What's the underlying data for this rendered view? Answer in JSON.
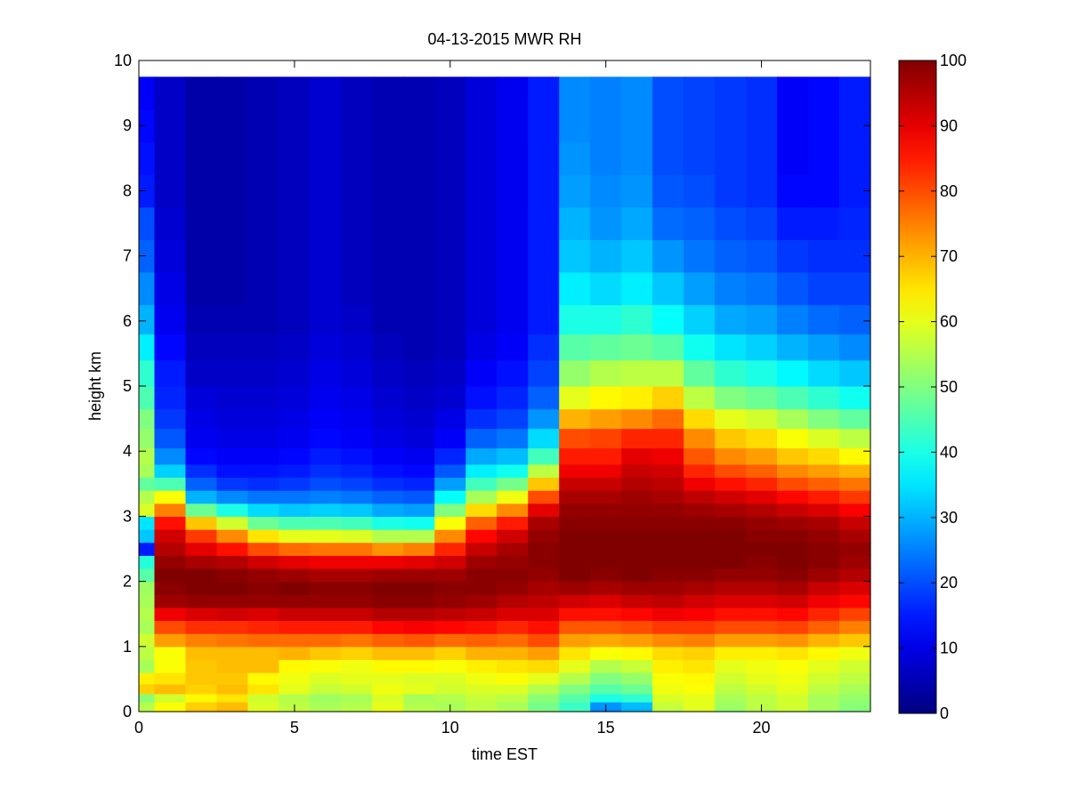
{
  "chart_data": {
    "type": "heatmap",
    "title": "04-13-2015 MWR RH",
    "xlabel": "time EST",
    "ylabel": "height km",
    "xlim": [
      0,
      23.5
    ],
    "ylim": [
      0,
      10
    ],
    "x_ticks": [
      0,
      5,
      10,
      15,
      20
    ],
    "x_tick_labels": [
      "0",
      "5",
      "10",
      "15",
      "20"
    ],
    "y_ticks": [
      0,
      1,
      2,
      3,
      4,
      5,
      6,
      7,
      8,
      9,
      10
    ],
    "y_tick_labels": [
      "0",
      "1",
      "2",
      "3",
      "4",
      "5",
      "6",
      "7",
      "8",
      "9",
      "10"
    ],
    "colorbar": {
      "colormap": "jet",
      "clim": [
        0,
        100
      ],
      "ticks": [
        0,
        10,
        20,
        30,
        40,
        50,
        60,
        70,
        80,
        90,
        100
      ],
      "tick_labels": [
        "0",
        "10",
        "20",
        "30",
        "40",
        "50",
        "60",
        "70",
        "80",
        "90",
        "100"
      ]
    },
    "time_hours": [
      0,
      1,
      2,
      3,
      4,
      5,
      6,
      7,
      8,
      9,
      10,
      11,
      12,
      13,
      14,
      15,
      16,
      17,
      18,
      19,
      20,
      21,
      22,
      23
    ],
    "heights_km": [
      0.0,
      0.1,
      0.2,
      0.35,
      0.5,
      0.7,
      0.9,
      1.1,
      1.3,
      1.5,
      1.7,
      1.9,
      2.1,
      2.3,
      2.5,
      2.7,
      2.9,
      3.1,
      3.3,
      3.5,
      3.7,
      3.9,
      4.2,
      4.5,
      4.8,
      5.2,
      5.6,
      6.0,
      6.5,
      7.0,
      7.5,
      8.0,
      8.5,
      9.0,
      9.5,
      9.75
    ],
    "rh_percent": [
      [
        56,
        55,
        51,
        67,
        64,
        54,
        56,
        58,
        54,
        55,
        54,
        53,
        46,
        41,
        15,
        32,
        35,
        59,
        55,
        47,
        54,
        55,
        52,
        50,
        45,
        42,
        36,
        30,
        26,
        22,
        20,
        15,
        14,
        13,
        12,
        12
      ],
      [
        63,
        62,
        58,
        69,
        65,
        62,
        62,
        72,
        80,
        89,
        97,
        99,
        100,
        98,
        95,
        92,
        86,
        75,
        62,
        45,
        33,
        26,
        21,
        18,
        16,
        15,
        13,
        11,
        10,
        9,
        8,
        7,
        7,
        7,
        7,
        7
      ],
      [
        68,
        67,
        63,
        67,
        68,
        68,
        69,
        75,
        83,
        91,
        98,
        100,
        100,
        96,
        90,
        82,
        68,
        48,
        30,
        22,
        17,
        13,
        11,
        10,
        9,
        7,
        6,
        5,
        4,
        4,
        4,
        4,
        4,
        4,
        4,
        4
      ],
      [
        70,
        69,
        65,
        69,
        68,
        69,
        69,
        76,
        83,
        92,
        98,
        100,
        99,
        95,
        86,
        74,
        58,
        40,
        26,
        18,
        14,
        12,
        10,
        9,
        8,
        7,
        6,
        5,
        4,
        4,
        4,
        4,
        4,
        4,
        4,
        4
      ],
      [
        60,
        59,
        58,
        65,
        63,
        69,
        69,
        77,
        84,
        91,
        98,
        99,
        98,
        92,
        80,
        65,
        48,
        34,
        24,
        17,
        14,
        12,
        10,
        9,
        8,
        7,
        6,
        5,
        5,
        5,
        5,
        5,
        5,
        5,
        5,
        5
      ],
      [
        57,
        56,
        55,
        60,
        61,
        63,
        70,
        77,
        85,
        93,
        98,
        100,
        97,
        90,
        77,
        60,
        45,
        32,
        24,
        18,
        15,
        13,
        11,
        10,
        9,
        8,
        7,
        6,
        6,
        6,
        6,
        6,
        6,
        6,
        6,
        6
      ],
      [
        55,
        54,
        53,
        57,
        59,
        62,
        68,
        77,
        85,
        93,
        98,
        99,
        96,
        89,
        76,
        60,
        45,
        33,
        25,
        20,
        17,
        15,
        13,
        12,
        11,
        10,
        9,
        8,
        8,
        8,
        8,
        8,
        8,
        8,
        8,
        8
      ],
      [
        56,
        55,
        54,
        58,
        60,
        61,
        67,
        76,
        85,
        93,
        98,
        99,
        96,
        89,
        76,
        59,
        44,
        32,
        24,
        19,
        16,
        14,
        12,
        11,
        10,
        9,
        8,
        7,
        6,
        6,
        6,
        6,
        6,
        6,
        6,
        6
      ],
      [
        61,
        60,
        59,
        61,
        60,
        63,
        69,
        78,
        87,
        95,
        99,
        100,
        97,
        89,
        73,
        55,
        40,
        29,
        22,
        17,
        14,
        12,
        10,
        9,
        8,
        7,
        6,
        5,
        5,
        5,
        5,
        5,
        5,
        5,
        5,
        5
      ],
      [
        56,
        55,
        54,
        60,
        59,
        63,
        69,
        79,
        88,
        95,
        99,
        100,
        97,
        90,
        75,
        55,
        39,
        28,
        21,
        16,
        13,
        11,
        9,
        8,
        7,
        6,
        5,
        5,
        5,
        5,
        5,
        5,
        5,
        5,
        5,
        5
      ],
      [
        55,
        54,
        55,
        58,
        59,
        62,
        67,
        77,
        87,
        94,
        98,
        99,
        97,
        92,
        84,
        74,
        62,
        50,
        38,
        28,
        21,
        16,
        12,
        10,
        8,
        7,
        6,
        6,
        6,
        6,
        6,
        6,
        6,
        6,
        6,
        6
      ],
      [
        57,
        56,
        57,
        59,
        61,
        64,
        70,
        78,
        86,
        93,
        97,
        99,
        99,
        97,
        93,
        87,
        78,
        66,
        54,
        44,
        36,
        29,
        22,
        17,
        14,
        12,
        10,
        9,
        9,
        9,
        9,
        9,
        9,
        9,
        9,
        9
      ],
      [
        55,
        54,
        56,
        59,
        62,
        65,
        70,
        77,
        84,
        91,
        95,
        98,
        99,
        98,
        96,
        92,
        85,
        74,
        61,
        49,
        39,
        31,
        24,
        19,
        16,
        14,
        12,
        11,
        11,
        11,
        11,
        11,
        11,
        11,
        11,
        11
      ],
      [
        50,
        49,
        51,
        55,
        60,
        66,
        72,
        80,
        86,
        91,
        94,
        96,
        98,
        99,
        99,
        98,
        96,
        90,
        80,
        68,
        56,
        44,
        34,
        27,
        22,
        19,
        17,
        15,
        15,
        15,
        15,
        15,
        15,
        15,
        15,
        15
      ],
      [
        44,
        43,
        46,
        50,
        55,
        60,
        65,
        72,
        79,
        86,
        92,
        97,
        100,
        100,
        100,
        100,
        99,
        98,
        96,
        93,
        89,
        85,
        80,
        70,
        60,
        52,
        46,
        40,
        36,
        32,
        30,
        28,
        27,
        26,
        26,
        26
      ],
      [
        26,
        27,
        40,
        46,
        50,
        55,
        62,
        71,
        79,
        86,
        91,
        96,
        99,
        100,
        100,
        100,
        99,
        98,
        96,
        93,
        89,
        85,
        81,
        72,
        63,
        55,
        47,
        40,
        34,
        30,
        27,
        26,
        25,
        25,
        25,
        25
      ],
      [
        30,
        31,
        42,
        48,
        52,
        57,
        63,
        72,
        80,
        87,
        93,
        97,
        100,
        100,
        100,
        100,
        99,
        98,
        97,
        95,
        93,
        90,
        84,
        74,
        64,
        56,
        48,
        42,
        36,
        32,
        29,
        27,
        26,
        26,
        26,
        26
      ],
      [
        56,
        57,
        59,
        61,
        62,
        64,
        66,
        74,
        82,
        89,
        94,
        97,
        99,
        100,
        100,
        100,
        99,
        98,
        96,
        94,
        92,
        89,
        84,
        77,
        67,
        56,
        46,
        38,
        32,
        27,
        23,
        21,
        20,
        20,
        20,
        20
      ],
      [
        59,
        60,
        60,
        62,
        63,
        65,
        67,
        75,
        82,
        88,
        92,
        96,
        99,
        100,
        100,
        100,
        99,
        97,
        94,
        89,
        84,
        79,
        74,
        66,
        56,
        47,
        39,
        33,
        28,
        24,
        22,
        20,
        19,
        19,
        19,
        19
      ],
      [
        52,
        53,
        54,
        56,
        58,
        60,
        64,
        72,
        80,
        86,
        91,
        95,
        98,
        100,
        100,
        100,
        99,
        96,
        92,
        86,
        80,
        74,
        68,
        60,
        50,
        42,
        35,
        29,
        25,
        22,
        20,
        18,
        18,
        18,
        18,
        18
      ],
      [
        55,
        56,
        56,
        58,
        60,
        61,
        64,
        72,
        80,
        86,
        91,
        95,
        98,
        99,
        100,
        99,
        98,
        95,
        90,
        84,
        78,
        72,
        66,
        58,
        48,
        40,
        33,
        28,
        24,
        21,
        19,
        17,
        17,
        17,
        17,
        17
      ],
      [
        57,
        58,
        58,
        60,
        61,
        62,
        65,
        73,
        81,
        87,
        92,
        96,
        99,
        100,
        100,
        99,
        97,
        93,
        87,
        80,
        74,
        68,
        62,
        54,
        45,
        37,
        30,
        25,
        21,
        18,
        15,
        13,
        12,
        12,
        12,
        12
      ],
      [
        53,
        54,
        54,
        56,
        58,
        60,
        63,
        70,
        78,
        84,
        89,
        93,
        97,
        99,
        99,
        98,
        96,
        91,
        85,
        78,
        72,
        66,
        59,
        50,
        42,
        34,
        28,
        23,
        19,
        17,
        15,
        13,
        13,
        13,
        13,
        13
      ],
      [
        50,
        51,
        52,
        54,
        56,
        58,
        61,
        68,
        75,
        81,
        87,
        91,
        95,
        97,
        98,
        96,
        93,
        88,
        82,
        76,
        70,
        63,
        56,
        47,
        39,
        32,
        26,
        22,
        19,
        17,
        16,
        15,
        15,
        15,
        15,
        15
      ]
    ]
  }
}
